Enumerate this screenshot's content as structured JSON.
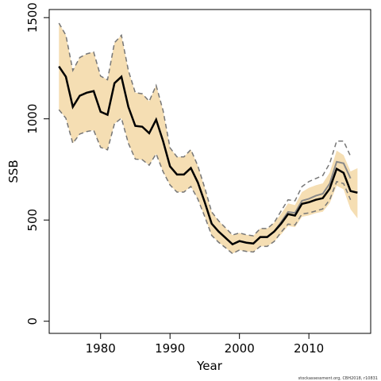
{
  "chart_data": {
    "type": "line",
    "x_label": "Year",
    "y_label": "SSB",
    "footnote": "stockassessment.org, CBH2018, r10831",
    "xlim": [
      1972.6,
      2018.9
    ],
    "ylim": [
      -60,
      1540
    ],
    "xticks": [
      1980,
      1990,
      2000,
      2010
    ],
    "yticks": [
      0,
      500,
      1000,
      1500
    ],
    "x": [
      1974,
      1975,
      1976,
      1977,
      1978,
      1979,
      1980,
      1981,
      1982,
      1983,
      1984,
      1985,
      1986,
      1987,
      1988,
      1989,
      1990,
      1991,
      1992,
      1993,
      1994,
      1995,
      1996,
      1997,
      1998,
      1999,
      2000,
      2001,
      2002,
      2003,
      2004,
      2005,
      2006,
      2007,
      2008,
      2009,
      2010,
      2011,
      2012,
      2013,
      2014,
      2015,
      2016,
      2017
    ],
    "band": {
      "color": "#f5deb3",
      "upper": [
        1473,
        1413,
        1239,
        1303,
        1321,
        1330,
        1211,
        1193,
        1376,
        1413,
        1239,
        1129,
        1124,
        1087,
        1165,
        1041,
        857,
        812,
        812,
        848,
        768,
        659,
        540,
        496,
        461,
        426,
        436,
        427,
        422,
        458,
        458,
        487,
        530,
        582,
        574,
        638,
        659,
        672,
        681,
        734,
        843,
        821,
        740,
        756
      ],
      "lower": [
        1045,
        1003,
        879,
        925,
        937,
        944,
        859,
        847,
        976,
        1003,
        879,
        801,
        798,
        771,
        827,
        739,
        673,
        638,
        638,
        666,
        604,
        517,
        424,
        390,
        363,
        334,
        352,
        345,
        342,
        370,
        370,
        394,
        429,
        471,
        465,
        516,
        523,
        534,
        541,
        583,
        670,
        652,
        553,
        508
      ]
    },
    "series": [
      {
        "color": "#777777",
        "dash": true,
        "values": [
          1473,
          1413,
          1239,
          1303,
          1321,
          1330,
          1211,
          1193,
          1376,
          1413,
          1239,
          1129,
          1124,
          1087,
          1165,
          1041,
          857,
          812,
          812,
          848,
          768,
          659,
          540,
          496,
          461,
          426,
          436,
          427,
          422,
          458,
          458,
          487,
          545,
          600,
          595,
          665,
          690,
          705,
          720,
          780,
          890,
          890,
          815,
          null
        ]
      },
      {
        "color": "#777777",
        "dash": true,
        "values": [
          1045,
          1003,
          879,
          925,
          937,
          944,
          859,
          847,
          976,
          1003,
          879,
          801,
          798,
          771,
          827,
          739,
          673,
          638,
          638,
          666,
          604,
          517,
          424,
          390,
          363,
          334,
          352,
          345,
          342,
          370,
          370,
          394,
          440,
          480,
          475,
          530,
          535,
          545,
          555,
          600,
          690,
          680,
          600,
          null
        ]
      },
      {
        "color": "#888888",
        "width": 2,
        "values": [
          1259,
          1208,
          1059,
          1114,
          1129,
          1137,
          1035,
          1020,
          1176,
          1208,
          1059,
          965,
          961,
          929,
          996,
          890,
          765,
          725,
          725,
          757,
          686,
          588,
          482,
          443,
          412,
          380,
          396,
          388,
          384,
          416,
          416,
          443,
          490,
          540,
          535,
          595,
          605,
          620,
          630,
          680,
          788,
          780,
          706,
          null
        ]
      },
      {
        "color": "#000000",
        "width": 2.5,
        "values": [
          1259,
          1208,
          1059,
          1114,
          1129,
          1137,
          1035,
          1020,
          1176,
          1208,
          1059,
          965,
          961,
          929,
          996,
          890,
          765,
          725,
          725,
          757,
          686,
          588,
          482,
          443,
          412,
          380,
          396,
          388,
          384,
          416,
          416,
          443,
          482,
          529,
          522,
          580,
          588,
          600,
          608,
          655,
          753,
          733,
          643,
          635
        ]
      }
    ]
  }
}
